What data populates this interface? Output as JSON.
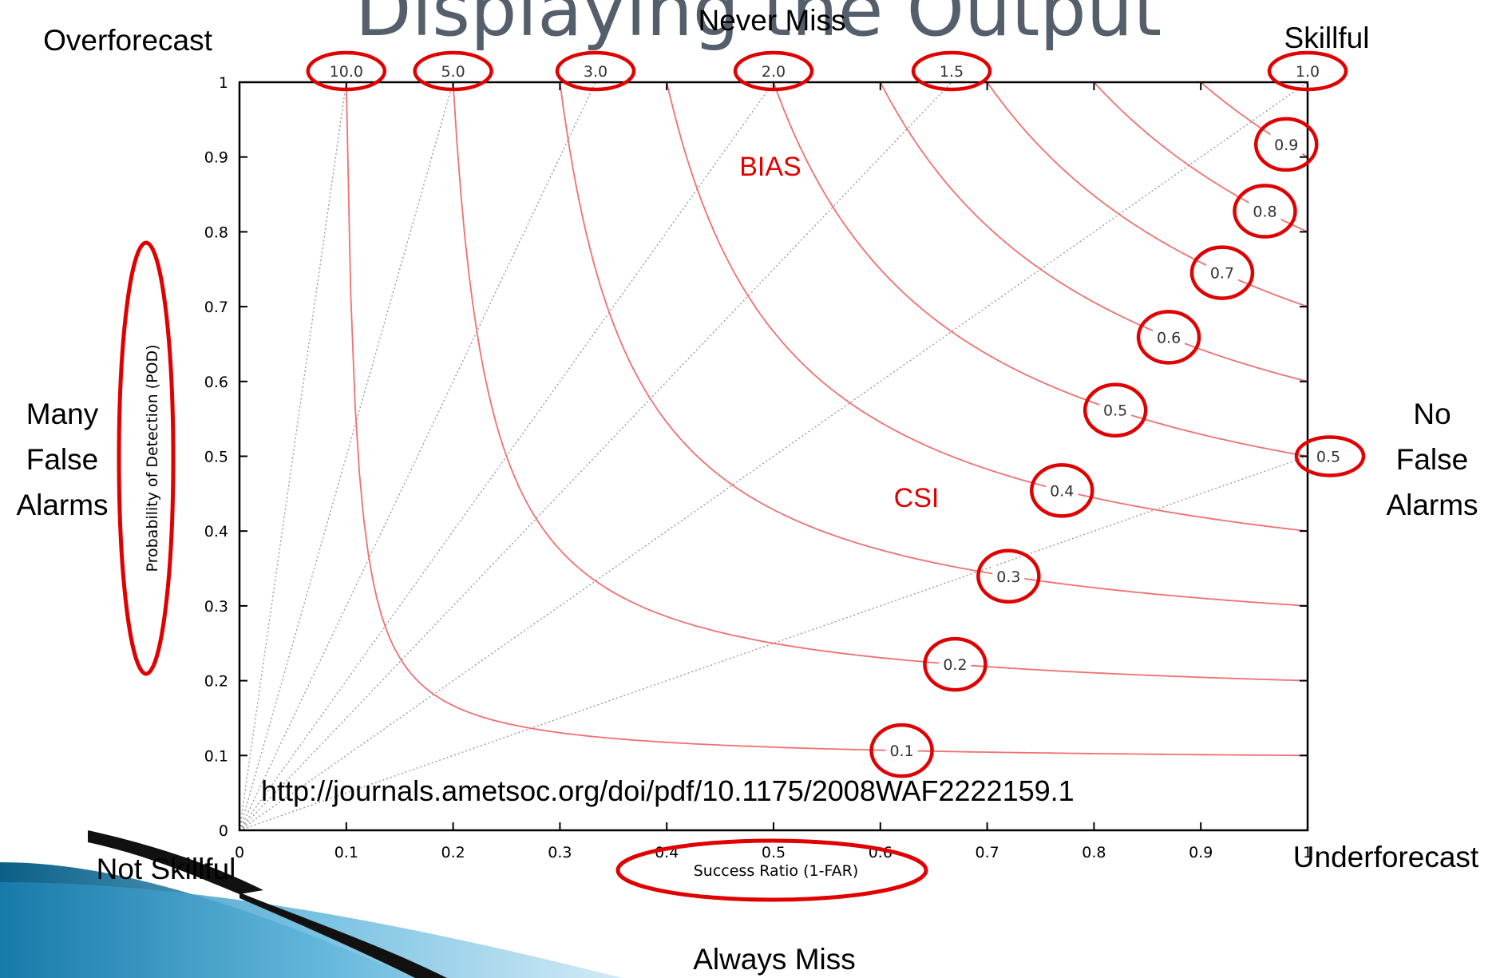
{
  "slide": {
    "title": "Displaying the Output"
  },
  "labels": {
    "overforecast": "Overforecast",
    "never_miss": "Never Miss",
    "skillful": "Skillful",
    "many_false_alarms": [
      "Many",
      "False",
      "Alarms"
    ],
    "no_false_alarms": [
      "No",
      "False",
      "Alarms"
    ],
    "not_skillful": "Not Skillful",
    "underforecast": "Underforecast",
    "always_miss": "Always Miss",
    "bias": "BIAS",
    "csi": "CSI",
    "url": "http://journals.ametsoc.org/doi/pdf/10.1175/2008WAF2222159.1"
  },
  "colors": {
    "highlight": "#e00000",
    "curve": "#f07070",
    "dotted": "#9a9a9a",
    "axis": "#000000"
  },
  "chart_data": {
    "type": "performance-diagram",
    "xlabel": "Success Ratio (1-FAR)",
    "ylabel": "Probability of Detection (POD)",
    "xlim": [
      0,
      1
    ],
    "ylim": [
      0,
      1
    ],
    "x_ticks": [
      "0",
      "0.1",
      "0.2",
      "0.3",
      "0.4",
      "0.5",
      "0.6",
      "0.7",
      "0.8",
      "0.9",
      "1"
    ],
    "y_ticks": [
      "0",
      "0.1",
      "0.2",
      "0.3",
      "0.4",
      "0.5",
      "0.6",
      "0.7",
      "0.8",
      "0.9",
      "1"
    ],
    "csi_levels": [
      0.1,
      0.2,
      0.3,
      0.4,
      0.5,
      0.6,
      0.7,
      0.8,
      0.9
    ],
    "csi_label_text": [
      "0.1",
      "0.2",
      "0.3",
      "0.4",
      "0.5",
      "0.6",
      "0.7",
      "0.8",
      "0.9"
    ],
    "csi_label_sr": [
      0.62,
      0.67,
      0.72,
      0.77,
      0.82,
      0.87,
      0.92,
      0.96,
      0.98
    ],
    "bias_levels": [
      10.0,
      5.0,
      3.0,
      2.0,
      1.5,
      1.0,
      0.5
    ],
    "bias_top_labels": [
      "10.0",
      "5.0",
      "3.0",
      "2.0",
      "1.5",
      "1.0"
    ],
    "bias_right_labels": [
      "0.5"
    ],
    "circled_bias_labels": [
      "10.0",
      "5.0",
      "3.0",
      "2.0",
      "1.5",
      "1.0",
      "0.5"
    ],
    "circled_csi_labels": [
      "0.1",
      "0.2",
      "0.3",
      "0.4",
      "0.5",
      "0.6",
      "0.7",
      "0.8",
      "0.9"
    ]
  }
}
